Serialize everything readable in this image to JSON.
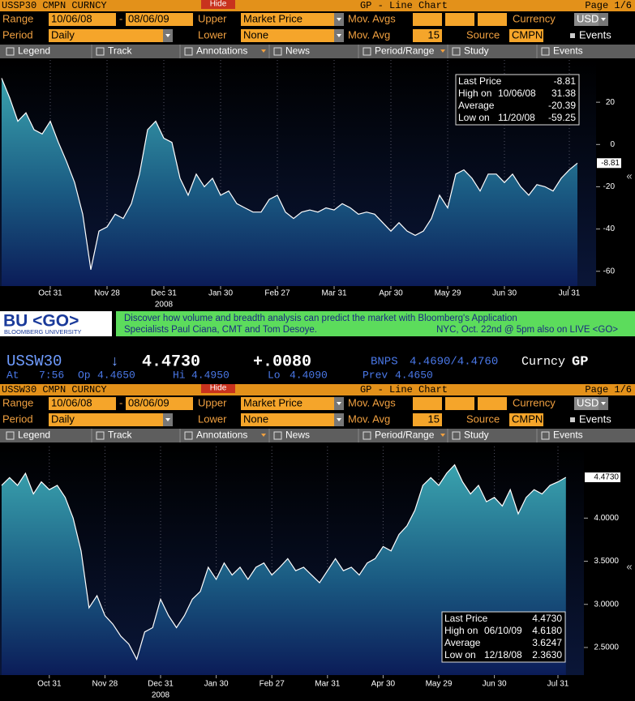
{
  "panels": [
    {
      "header": {
        "ticker": "USSP30 CMPN CURNCY",
        "hide": "Hide",
        "title": "GP - Line Chart",
        "page": "Page 1/6"
      },
      "controls": {
        "range_label": "Range",
        "range_from": "10/06/08",
        "range_sep": "-",
        "range_to": "08/06/09",
        "upper_label": "Upper",
        "upper": "Market Price",
        "mov_avgs_label": "Mov. Avgs",
        "currency_label": "Currency",
        "currency": "USD",
        "period_label": "Period",
        "period": "Daily",
        "lower_label": "Lower",
        "lower": "None",
        "mov_avg_label": "Mov. Avg",
        "mov_avg": "15",
        "source_label": "Source",
        "source": "CMPN",
        "events_label": "Events"
      },
      "toolbar": [
        "Legend",
        "Track",
        "Annotations",
        "News",
        "Period/Range",
        "Study",
        "Events"
      ],
      "scroll_glyph": "«"
    },
    {
      "header": {
        "ticker": "USSW30 CMPN CURNCY",
        "hide": "Hide",
        "title": "GP - Line Chart",
        "page": "Page 1/6"
      },
      "controls": {
        "range_label": "Range",
        "range_from": "10/06/08",
        "range_sep": "-",
        "range_to": "08/06/09",
        "upper_label": "Upper",
        "upper": "Market Price",
        "mov_avgs_label": "Mov. Avgs",
        "currency_label": "Currency",
        "currency": "USD",
        "period_label": "Period",
        "period": "Daily",
        "lower_label": "Lower",
        "lower": "None",
        "mov_avg_label": "Mov. Avg",
        "mov_avg": "15",
        "source_label": "Source",
        "source": "CMPN",
        "events_label": "Events"
      },
      "toolbar": [
        "Legend",
        "Track",
        "Annotations",
        "News",
        "Period/Range",
        "Study",
        "Events"
      ],
      "scroll_glyph": "«"
    }
  ],
  "banner": {
    "logo": "BU <GO>",
    "logo_sub": "BLOOMBERG UNIVERSITY",
    "line1": "Discover how volume and breadth analysis can predict the market with Bloomberg's Application",
    "line2": "Specialists Paul Ciana, CMT and Tom Desoye.",
    "line3": "NYC, Oct. 22nd @ 5pm also on LIVE <GO>"
  },
  "quote": {
    "symbol": "USSW30",
    "arrow": "↓",
    "last": "4.4730",
    "change": "+.0080",
    "source": "BNPS",
    "bid_ask": "4.4690/4.4760",
    "type": "Curncy",
    "function": "GP",
    "time_label": "At",
    "time": "7:56",
    "open_label": "Op",
    "open": "4.4650",
    "high_label": "Hi",
    "high": "4.4950",
    "low_label": "Lo",
    "low": "4.4090",
    "prev_label": "Prev",
    "prev": "4.4650"
  },
  "chart_data": [
    {
      "type": "line",
      "categories": [
        null,
        null,
        null,
        null,
        null,
        null,
        "Oct 31",
        null,
        null,
        null,
        null,
        null,
        null,
        "Nov 28",
        null,
        null,
        null,
        null,
        null,
        null,
        "Dec 31",
        null,
        null,
        null,
        null,
        null,
        null,
        "Jan 30",
        null,
        null,
        null,
        null,
        null,
        null,
        "Feb 27",
        null,
        null,
        null,
        null,
        null,
        null,
        "Mar 31",
        null,
        null,
        null,
        null,
        null,
        null,
        "Apr 30",
        null,
        null,
        null,
        null,
        null,
        null,
        "May 29",
        null,
        null,
        null,
        null,
        null,
        null,
        "Jun 30",
        null,
        null,
        null,
        null,
        null,
        null,
        null,
        "Jul 31",
        null
      ],
      "x_sublabel": "2008",
      "series": [
        {
          "name": "Last Price",
          "color": "#ffffff",
          "values": [
            31.38,
            22,
            11,
            15,
            7,
            5,
            11,
            1,
            -8,
            -18,
            -33,
            -59.25,
            -41,
            -39,
            -33,
            -35,
            -28,
            -14,
            7,
            11,
            3,
            1,
            -16,
            -24,
            -14,
            -20,
            -16,
            -24,
            -22,
            -28,
            -30,
            -32,
            -32,
            -26,
            -24,
            -32,
            -35,
            -32,
            -31,
            -32,
            -30,
            -31,
            -28,
            -30,
            -33,
            -32,
            -33,
            -37,
            -41,
            -37,
            -41,
            -43,
            -41,
            -35,
            -24,
            -30,
            -14,
            -12,
            -16,
            -22,
            -14,
            -14,
            -18,
            -14,
            -20,
            -24,
            -19,
            -20,
            -22,
            -16,
            -12,
            -8.81
          ]
        }
      ],
      "last_label": "-8.81",
      "ylim": [
        -67,
        40
      ],
      "yticks": [
        20,
        0,
        -20,
        -40,
        -60
      ],
      "grid": true,
      "stats": [
        {
          "label": "Last Price",
          "value": "-8.81"
        },
        {
          "label": "High on",
          "date": "10/06/08",
          "value": "31.38"
        },
        {
          "label": "Average",
          "value": "-20.39"
        },
        {
          "label": "Low on",
          "date": "11/20/08",
          "value": "-59.25"
        }
      ]
    },
    {
      "type": "line",
      "categories": [
        null,
        null,
        null,
        null,
        null,
        null,
        "Oct 31",
        null,
        null,
        null,
        null,
        null,
        null,
        "Nov 28",
        null,
        null,
        null,
        null,
        null,
        null,
        "Dec 31",
        null,
        null,
        null,
        null,
        null,
        null,
        "Jan 30",
        null,
        null,
        null,
        null,
        null,
        null,
        "Feb 27",
        null,
        null,
        null,
        null,
        null,
        null,
        "Mar 31",
        null,
        null,
        null,
        null,
        null,
        null,
        "Apr 30",
        null,
        null,
        null,
        null,
        null,
        null,
        "May 29",
        null,
        null,
        null,
        null,
        null,
        null,
        "Jun 30",
        null,
        null,
        null,
        null,
        null,
        null,
        null,
        "Jul 31",
        null
      ],
      "x_sublabel": "2008",
      "series": [
        {
          "name": "Last Price",
          "color": "#ffffff",
          "values": [
            4.38,
            4.47,
            4.38,
            4.52,
            4.28,
            4.42,
            4.33,
            4.38,
            4.24,
            4.0,
            3.62,
            2.96,
            3.1,
            2.87,
            2.77,
            2.63,
            2.54,
            2.363,
            2.68,
            2.73,
            3.06,
            2.87,
            2.73,
            2.87,
            3.06,
            3.15,
            3.43,
            3.29,
            3.48,
            3.34,
            3.43,
            3.29,
            3.43,
            3.48,
            3.34,
            3.43,
            3.53,
            3.39,
            3.43,
            3.34,
            3.25,
            3.39,
            3.53,
            3.39,
            3.43,
            3.34,
            3.48,
            3.53,
            3.67,
            3.62,
            3.81,
            3.91,
            4.09,
            4.38,
            4.47,
            4.38,
            4.52,
            4.618,
            4.42,
            4.28,
            4.38,
            4.19,
            4.24,
            4.14,
            4.33,
            4.05,
            4.24,
            4.33,
            4.28,
            4.38,
            4.42,
            4.473
          ]
        }
      ],
      "last_label": "4.4730",
      "ylim": [
        2.18,
        4.83
      ],
      "yticks": [
        {
          "value": 4,
          "label": "4.0000"
        },
        {
          "value": 3.5,
          "label": "3.5000"
        },
        {
          "value": 3,
          "label": "3.0000"
        },
        {
          "value": 2.5,
          "label": "2.5000"
        }
      ],
      "grid": true,
      "stats": [
        {
          "label": "Last Price",
          "value": "4.4730"
        },
        {
          "label": "High on",
          "date": "06/10/09",
          "value": "4.6180"
        },
        {
          "label": "Average",
          "value": "3.6247"
        },
        {
          "label": "Low on",
          "date": "12/18/08",
          "value": "2.3630"
        }
      ]
    }
  ]
}
